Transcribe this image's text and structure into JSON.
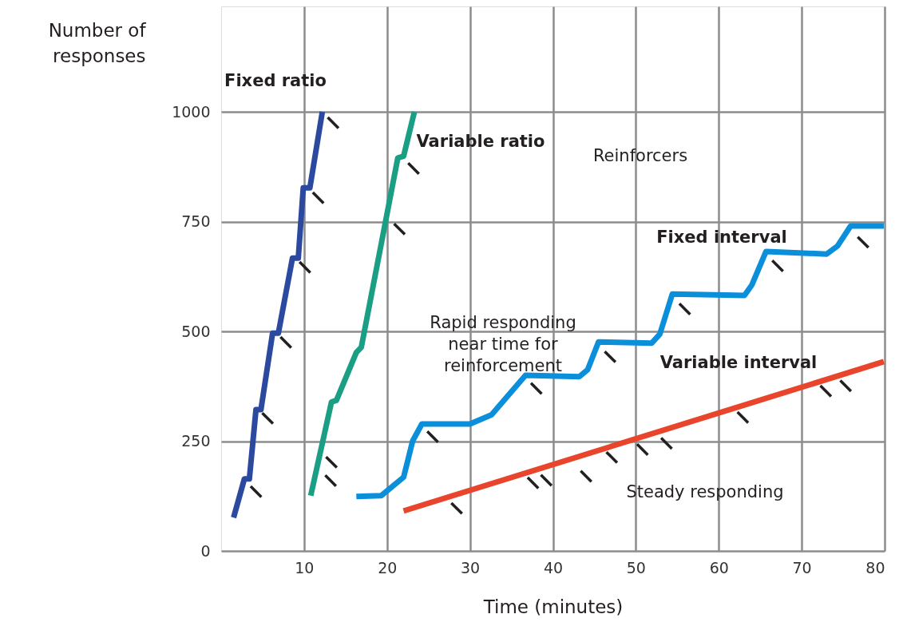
{
  "chart_data": {
    "type": "line",
    "xlabel": "Time (minutes)",
    "ylabel": "Number of\nresponses",
    "xlim": [
      0,
      80
    ],
    "xticks": [
      10,
      20,
      30,
      40,
      50,
      60,
      70,
      80
    ],
    "ylim": [
      0,
      1240
    ],
    "yticks": [
      0,
      250,
      500,
      750,
      1000
    ],
    "grid": true,
    "line_style": "solid",
    "series": [
      {
        "color": "#2b4a9f",
        "x": [
          1.5,
          2.8,
          3.4,
          4.2,
          4.8,
          6.2,
          6.9,
          8.6,
          9.3,
          9.9,
          10.7,
          12.2
        ],
        "values": [
          76,
          164,
          164,
          322,
          322,
          496,
          496,
          667,
          667,
          827,
          827,
          1000
        ]
      },
      {
        "color": "#1a9e84",
        "x": [
          10.8,
          13.3,
          13.9,
          16.3,
          16.9,
          21.3,
          22.0,
          23.3
        ],
        "values": [
          126,
          339,
          343,
          452,
          464,
          895,
          899,
          1000
        ]
      },
      {
        "color": "#0b8fdb",
        "x": [
          16.3,
          19.3,
          22.0,
          23.1,
          24.2,
          30.0,
          32.6,
          36.7,
          43.2,
          44.2,
          45.5,
          51.9,
          52.9,
          54.4,
          63.1,
          64.0,
          65.7,
          73.0,
          74.3,
          75.9,
          79.9
        ],
        "values": [
          124,
          126,
          168,
          251,
          289,
          289,
          310,
          400,
          397,
          413,
          476,
          473,
          494,
          585,
          582,
          606,
          682,
          676,
          694,
          740,
          740
        ]
      },
      {
        "color": "#e8452c",
        "x": [
          22.0,
          79.9
        ],
        "values": [
          91,
          431
        ]
      },
      {
        "type": "scatter",
        "color": "#231f20",
        "x": [
          4.2,
          5.6,
          7.8,
          10.1,
          11.7,
          13.5,
          13.2,
          13.3,
          21.5,
          23.2,
          25.5,
          38.0,
          46.9,
          55.9,
          67.1,
          77.4,
          28.4,
          37.6,
          39.2,
          44.0,
          47.1,
          50.8,
          53.7,
          62.9,
          72.9,
          75.3
        ],
        "values": [
          135,
          302,
          475,
          646,
          804,
          975,
          160,
          202,
          733,
          871,
          260,
          370,
          442,
          551,
          649,
          703,
          97,
          155,
          161,
          170,
          213,
          231,
          245,
          304,
          364,
          376
        ]
      }
    ],
    "annotations": [
      "Fixed ratio",
      "Variable ratio",
      "Reinforcers",
      "Fixed interval",
      "Variable interval",
      "Rapid responding\nnear time for\nreinforcement",
      "Steady responding"
    ]
  }
}
